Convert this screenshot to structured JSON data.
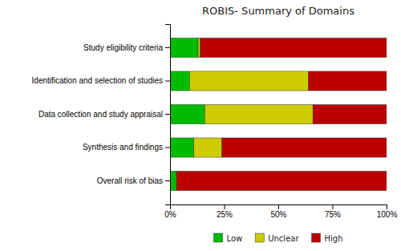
{
  "chart_data": {
    "type": "bar",
    "orientation": "horizontal",
    "stacked": true,
    "title": "ROBIS- Summary of Domains",
    "categories": [
      "Overall risk of bias",
      "Synthesis and findings",
      "Data collection and study appraisal",
      "Identification and selection of studies",
      "Study eligibility criteria"
    ],
    "series": [
      {
        "name": "Low",
        "color": "#00bb00",
        "values": [
          3,
          11,
          16,
          9,
          13
        ]
      },
      {
        "name": "Unclear",
        "color": "#cccc00",
        "values": [
          0,
          13,
          50,
          55,
          1
        ]
      },
      {
        "name": "High",
        "color": "#bb0000",
        "values": [
          97,
          76,
          34,
          36,
          86
        ]
      }
    ],
    "xlim": [
      0,
      100
    ],
    "xticks": [
      {
        "value": 0,
        "label": "0%"
      },
      {
        "value": 25,
        "label": "25%"
      },
      {
        "value": 50,
        "label": "50%"
      },
      {
        "value": 75,
        "label": "75%"
      },
      {
        "value": 100,
        "label": "100%"
      }
    ],
    "grid": false,
    "legend": "bottom"
  }
}
